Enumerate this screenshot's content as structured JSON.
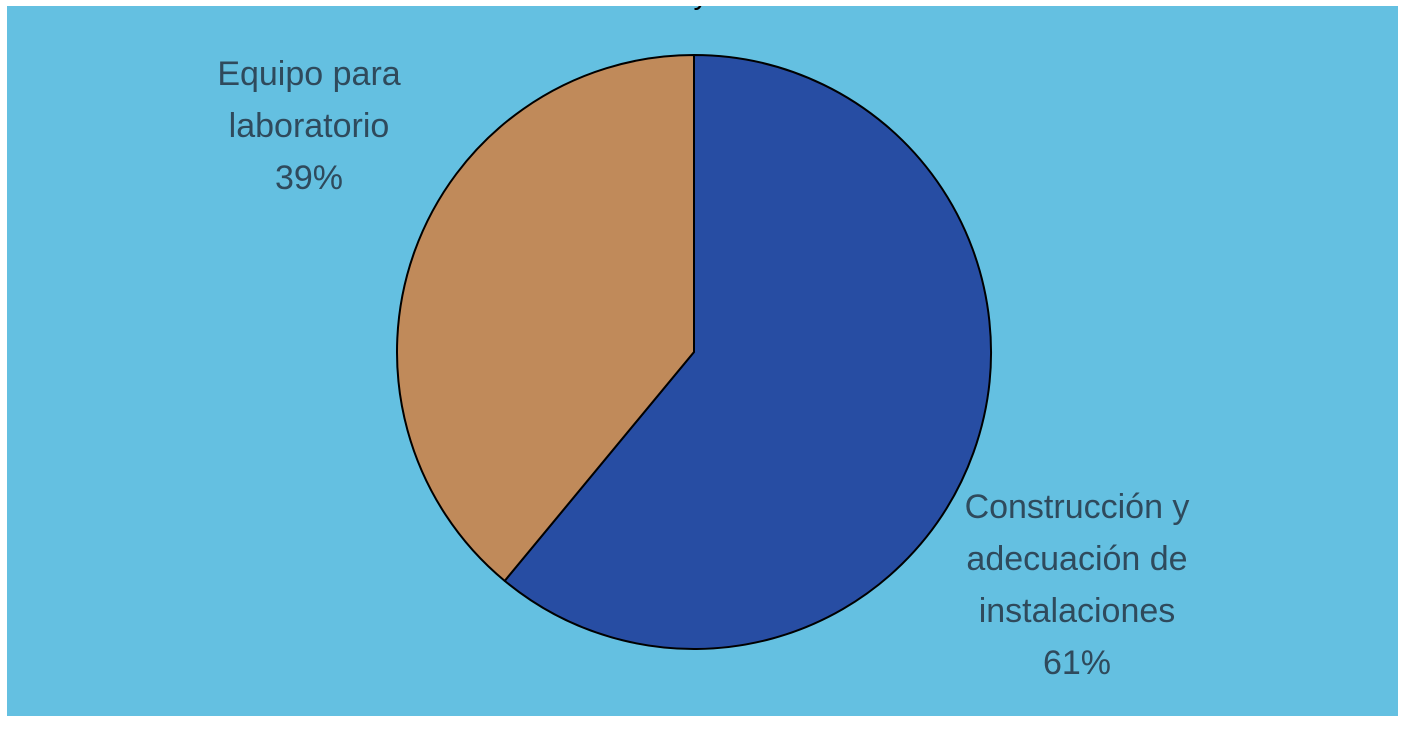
{
  "chart_data": {
    "type": "pie",
    "title_fragment": "y",
    "categories": [
      "Construcción y adecuación de instalaciones",
      "Equipo para laboratorio"
    ],
    "values": [
      61,
      39
    ],
    "slices": [
      {
        "name": "Construcción y adecuación de instalaciones",
        "value": 61,
        "label_lines": [
          "Construcción y",
          "adecuación de",
          "instalaciones",
          "61%"
        ],
        "color": "#274da3"
      },
      {
        "name": "Equipo para laboratorio",
        "value": 39,
        "label_lines": [
          "Equipo para",
          "laboratorio",
          "39%"
        ],
        "color": "#c08a5a"
      }
    ],
    "legend": "none",
    "background_color": "#64c0e1",
    "label_color": "#2f4a5c"
  }
}
